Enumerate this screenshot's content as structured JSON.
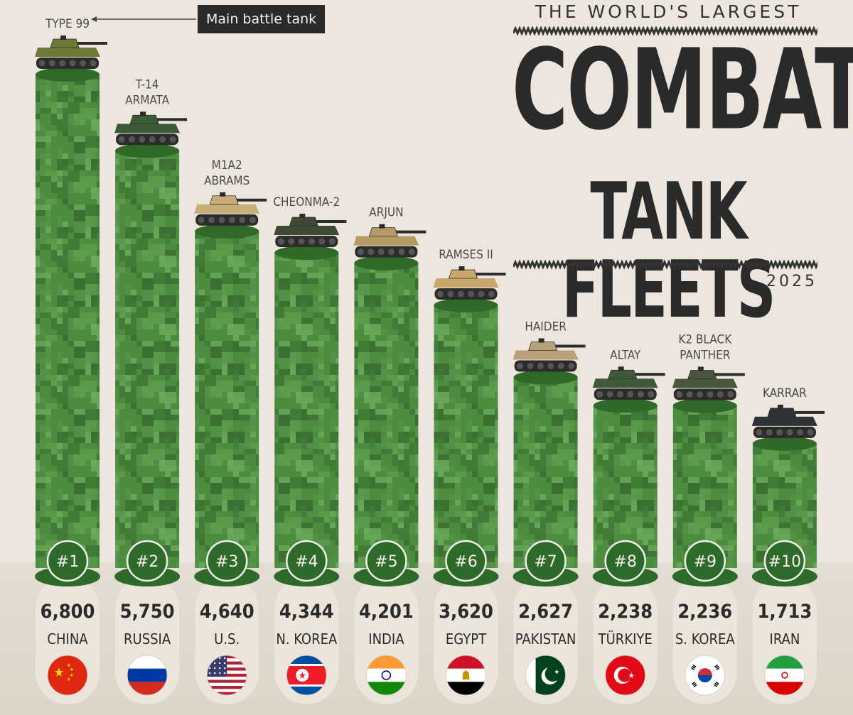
{
  "title": {
    "line1": "THE WORLD'S LARGEST",
    "line2": "COMBAT",
    "line3": "TANK FLEETS",
    "year": "2025"
  },
  "legend_label": "Main battle tank",
  "chart_data": {
    "type": "bar",
    "title": "THE WORLD'S LARGEST COMBAT TANK FLEETS",
    "subtitle": "2025",
    "categories": [
      "CHINA",
      "RUSSIA",
      "U.S.",
      "N. KOREA",
      "INDIA",
      "EGYPT",
      "PAKISTAN",
      "TÜRKIYE",
      "S. KOREA",
      "IRAN"
    ],
    "ranks": [
      "#1",
      "#2",
      "#3",
      "#4",
      "#5",
      "#6",
      "#7",
      "#8",
      "#9",
      "#10"
    ],
    "values": [
      6800,
      5750,
      4640,
      4344,
      4201,
      3620,
      2627,
      2238,
      2236,
      1713
    ],
    "value_labels": [
      "6,800",
      "5,750",
      "4,640",
      "4,344",
      "4,201",
      "3,620",
      "2,627",
      "2,238",
      "2,236",
      "1,713"
    ],
    "tank_names": [
      [
        "TYPE 99"
      ],
      [
        "T-14",
        "ARMATA"
      ],
      [
        "M1A2",
        "ABRAMS"
      ],
      [
        "CHEONMA-2"
      ],
      [
        "ARJUN"
      ],
      [
        "RAMSES II"
      ],
      [
        "HAIDER"
      ],
      [
        "ALTAY"
      ],
      [
        "K2 BLACK",
        "PANTHER"
      ],
      [
        "KARRAR"
      ]
    ],
    "tank_colors": [
      "#6e7a35",
      "#3b5a36",
      "#c8ad78",
      "#3f4a36",
      "#b59a66",
      "#c9a66b",
      "#b8a07a",
      "#3f5a3a",
      "#49573f",
      "#2e3338"
    ],
    "flags": [
      "china-flag",
      "russia-flag",
      "usa-flag",
      "north-korea-flag",
      "india-flag",
      "egypt-flag",
      "pakistan-flag",
      "turkiye-flag",
      "south-korea-flag",
      "iran-flag"
    ],
    "ylim": [
      0,
      6800
    ],
    "bar_color": "#4a8a3e",
    "grid": false
  }
}
